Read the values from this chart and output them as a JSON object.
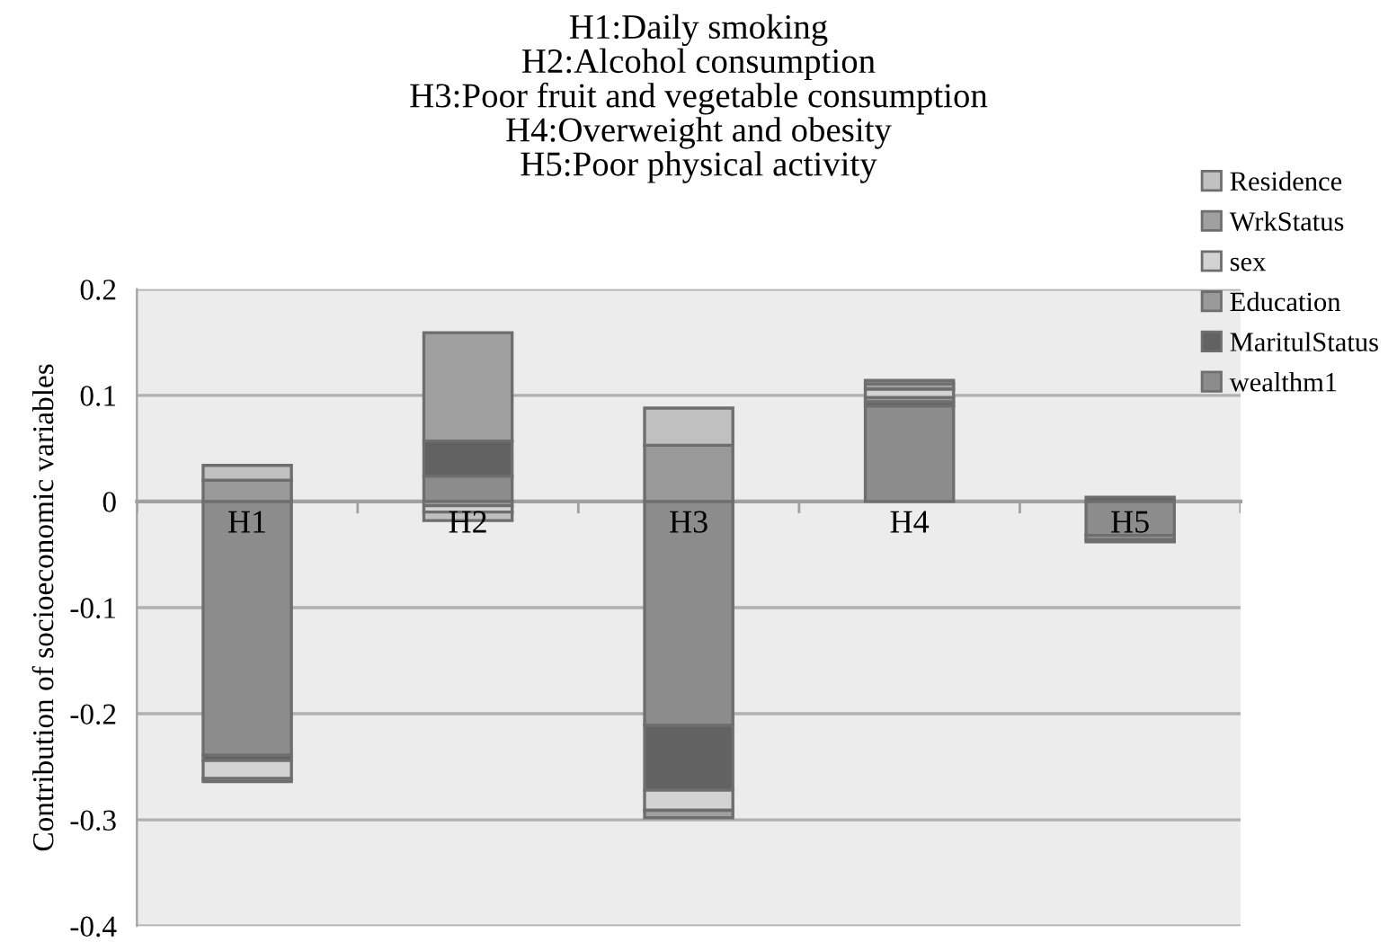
{
  "chart_data": {
    "type": "bar",
    "stacked": true,
    "title": "H1:Daily smoking\nH2:Alcohol consumption\nH3:Poor fruit and vegetable consumption\nH4:Overweight and obesity\nH5:Poor physical activity",
    "ylabel": "Contribution of socioeconomic variables",
    "categories": [
      "H1",
      "H2",
      "H3",
      "H4",
      "H5"
    ],
    "series": [
      {
        "name": "wealthm1",
        "color": "#8c8c8c",
        "values": [
          -0.239,
          0.024,
          -0.211,
          0.09,
          -0.032
        ]
      },
      {
        "name": "MaritulStatus",
        "color": "#626262",
        "values": [
          -0.005,
          0.033,
          -0.061,
          0.004,
          0.004
        ]
      },
      {
        "name": "Education",
        "color": "#999999",
        "values": [
          0.02,
          -0.004,
          0.053,
          0.004,
          -0.004
        ]
      },
      {
        "name": "sex",
        "color": "#d3d3d3",
        "values": [
          -0.017,
          -0.006,
          -0.019,
          0.008,
          -0.002
        ]
      },
      {
        "name": "WrkStatus",
        "color": "#a0a0a0",
        "values": [
          -0.003,
          0.102,
          -0.007,
          0.005,
          null
        ]
      },
      {
        "name": "Residence",
        "color": "#c0c0c0",
        "values": [
          0.014,
          -0.008,
          0.035,
          0.003,
          null
        ]
      }
    ],
    "ylim": [
      -0.4,
      0.2
    ],
    "yticks": [
      -0.4,
      -0.3,
      -0.2,
      -0.1,
      0,
      0.1,
      0.2
    ],
    "grid": "y",
    "legend": "top right"
  }
}
